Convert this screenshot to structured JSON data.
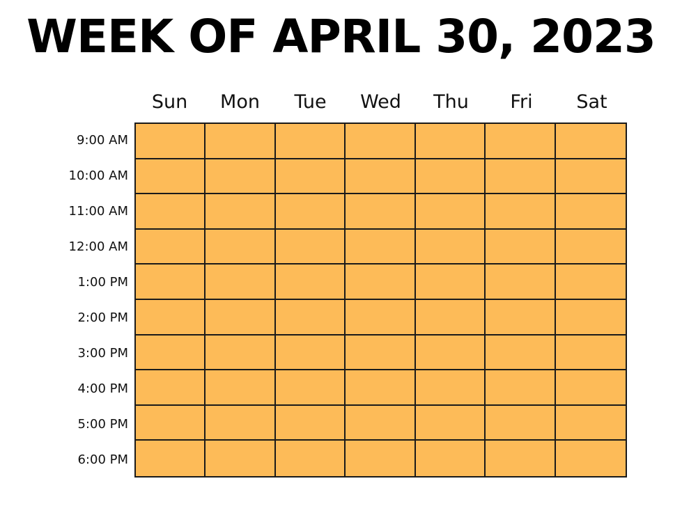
{
  "title": "WEEK OF APRIL 30, 2023",
  "days": [
    "Sun",
    "Mon",
    "Tue",
    "Wed",
    "Thu",
    "Fri",
    "Sat"
  ],
  "times": [
    "9:00 AM",
    "10:00 AM",
    "11:00 AM",
    "12:00 AM",
    "1:00 PM",
    "2:00 PM",
    "3:00 PM",
    "4:00 PM",
    "5:00 PM",
    "6:00 PM"
  ],
  "colors": {
    "cell_fill": "#fdbb58",
    "grid_line": "#1a1a1a"
  }
}
